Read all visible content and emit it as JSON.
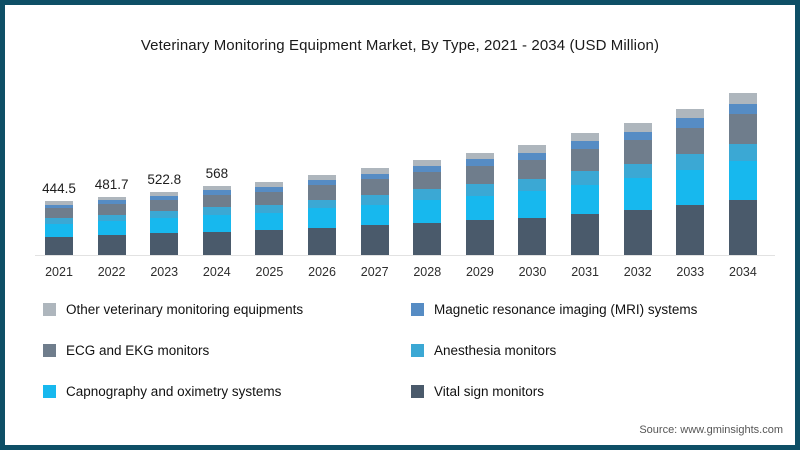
{
  "frame": {
    "border_color": "#0e4f66",
    "background": "#ffffff"
  },
  "title": "Veterinary Monitoring Equipment Market, By Type, 2021 - 2034 (USD Million)",
  "source": "Source: www.gminsights.com",
  "chart_data": {
    "type": "bar",
    "stacked": true,
    "unit": "USD Million",
    "categories": [
      "2021",
      "2022",
      "2023",
      "2024",
      "2025",
      "2026",
      "2027",
      "2028",
      "2029",
      "2030",
      "2031",
      "2032",
      "2033",
      "2034"
    ],
    "totals": [
      444.5,
      481.7,
      522.8,
      568,
      601,
      662,
      716,
      785,
      842,
      902,
      1000,
      1088,
      1203,
      1329
    ],
    "data_labels": [
      "444.5",
      "481.7",
      "522.8",
      "568",
      "",
      "",
      "",
      "",
      "",
      "",
      "",
      "",
      "",
      ""
    ],
    "series": [
      {
        "name": "Vital sign monitors",
        "color": "#4a5a6b",
        "values": [
          151.1,
          163.8,
          177.8,
          193.1,
          204.3,
          225.1,
          243.4,
          266.9,
          286.3,
          306.7,
          340,
          369.9,
          409,
          451.9
        ]
      },
      {
        "name": "Capnography and oximetry systems",
        "color": "#17b8ee",
        "values": [
          106.7,
          115.6,
          125.5,
          136.3,
          144.2,
          158.9,
          171.8,
          188.4,
          202.1,
          216.5,
          240,
          261.1,
          288.7,
          319
        ]
      },
      {
        "name": "Anesthesia monitors",
        "color": "#3ba8d4",
        "values": [
          48.9,
          53,
          57.5,
          62.5,
          66.1,
          72.8,
          78.8,
          86.4,
          92.6,
          99.2,
          110,
          119.7,
          132.3,
          146.2
        ]
      },
      {
        "name": "ECG and EKG monitors",
        "color": "#6f7d8c",
        "values": [
          80,
          86.7,
          94.1,
          102.2,
          108.2,
          119.2,
          128.9,
          141.3,
          151.6,
          162.4,
          180,
          195.8,
          216.5,
          239.2
        ]
      },
      {
        "name": "Magnetic resonance imaging (MRI) systems",
        "color": "#568cc4",
        "values": [
          28.9,
          31.3,
          34,
          36.9,
          39.1,
          43,
          46.5,
          51,
          54.7,
          58.6,
          65,
          70.7,
          78.2,
          86.4
        ]
      },
      {
        "name": "Other veterinary monitoring equipments",
        "color": "#aeb6bd",
        "values": [
          28.9,
          31.3,
          34,
          36.9,
          39.1,
          43,
          46.5,
          51,
          54.7,
          58.6,
          65,
          70.7,
          78.2,
          86.4
        ]
      }
    ],
    "legend_order": [
      "Other veterinary monitoring equipments",
      "Magnetic resonance imaging (MRI) systems",
      "ECG and EKG monitors",
      "Anesthesia monitors",
      "Capnography and oximetry systems",
      "Vital sign monitors"
    ],
    "ylim": [
      0,
      1400
    ],
    "grid": false,
    "legend_position": "bottom",
    "axis_line_color": "#e2e2e2"
  }
}
